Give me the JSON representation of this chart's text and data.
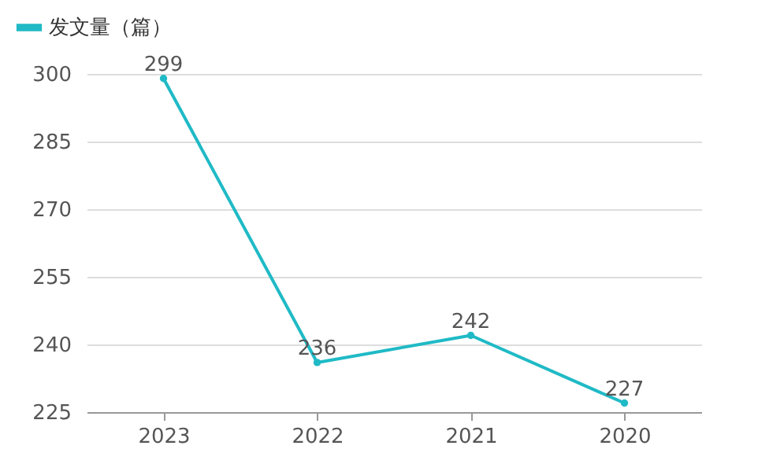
{
  "chart_data": {
    "type": "line",
    "categories": [
      "2023",
      "2022",
      "2021",
      "2020"
    ],
    "series": [
      {
        "name": "发文量（篇）",
        "color": "#1fbac6",
        "values": [
          299,
          236,
          242,
          227
        ]
      }
    ],
    "ylim": [
      225,
      300
    ],
    "yticks": [
      225,
      240,
      255,
      270,
      285,
      300
    ],
    "grid": "y",
    "legend": "top left",
    "marker": "circle",
    "data_labels": true
  }
}
